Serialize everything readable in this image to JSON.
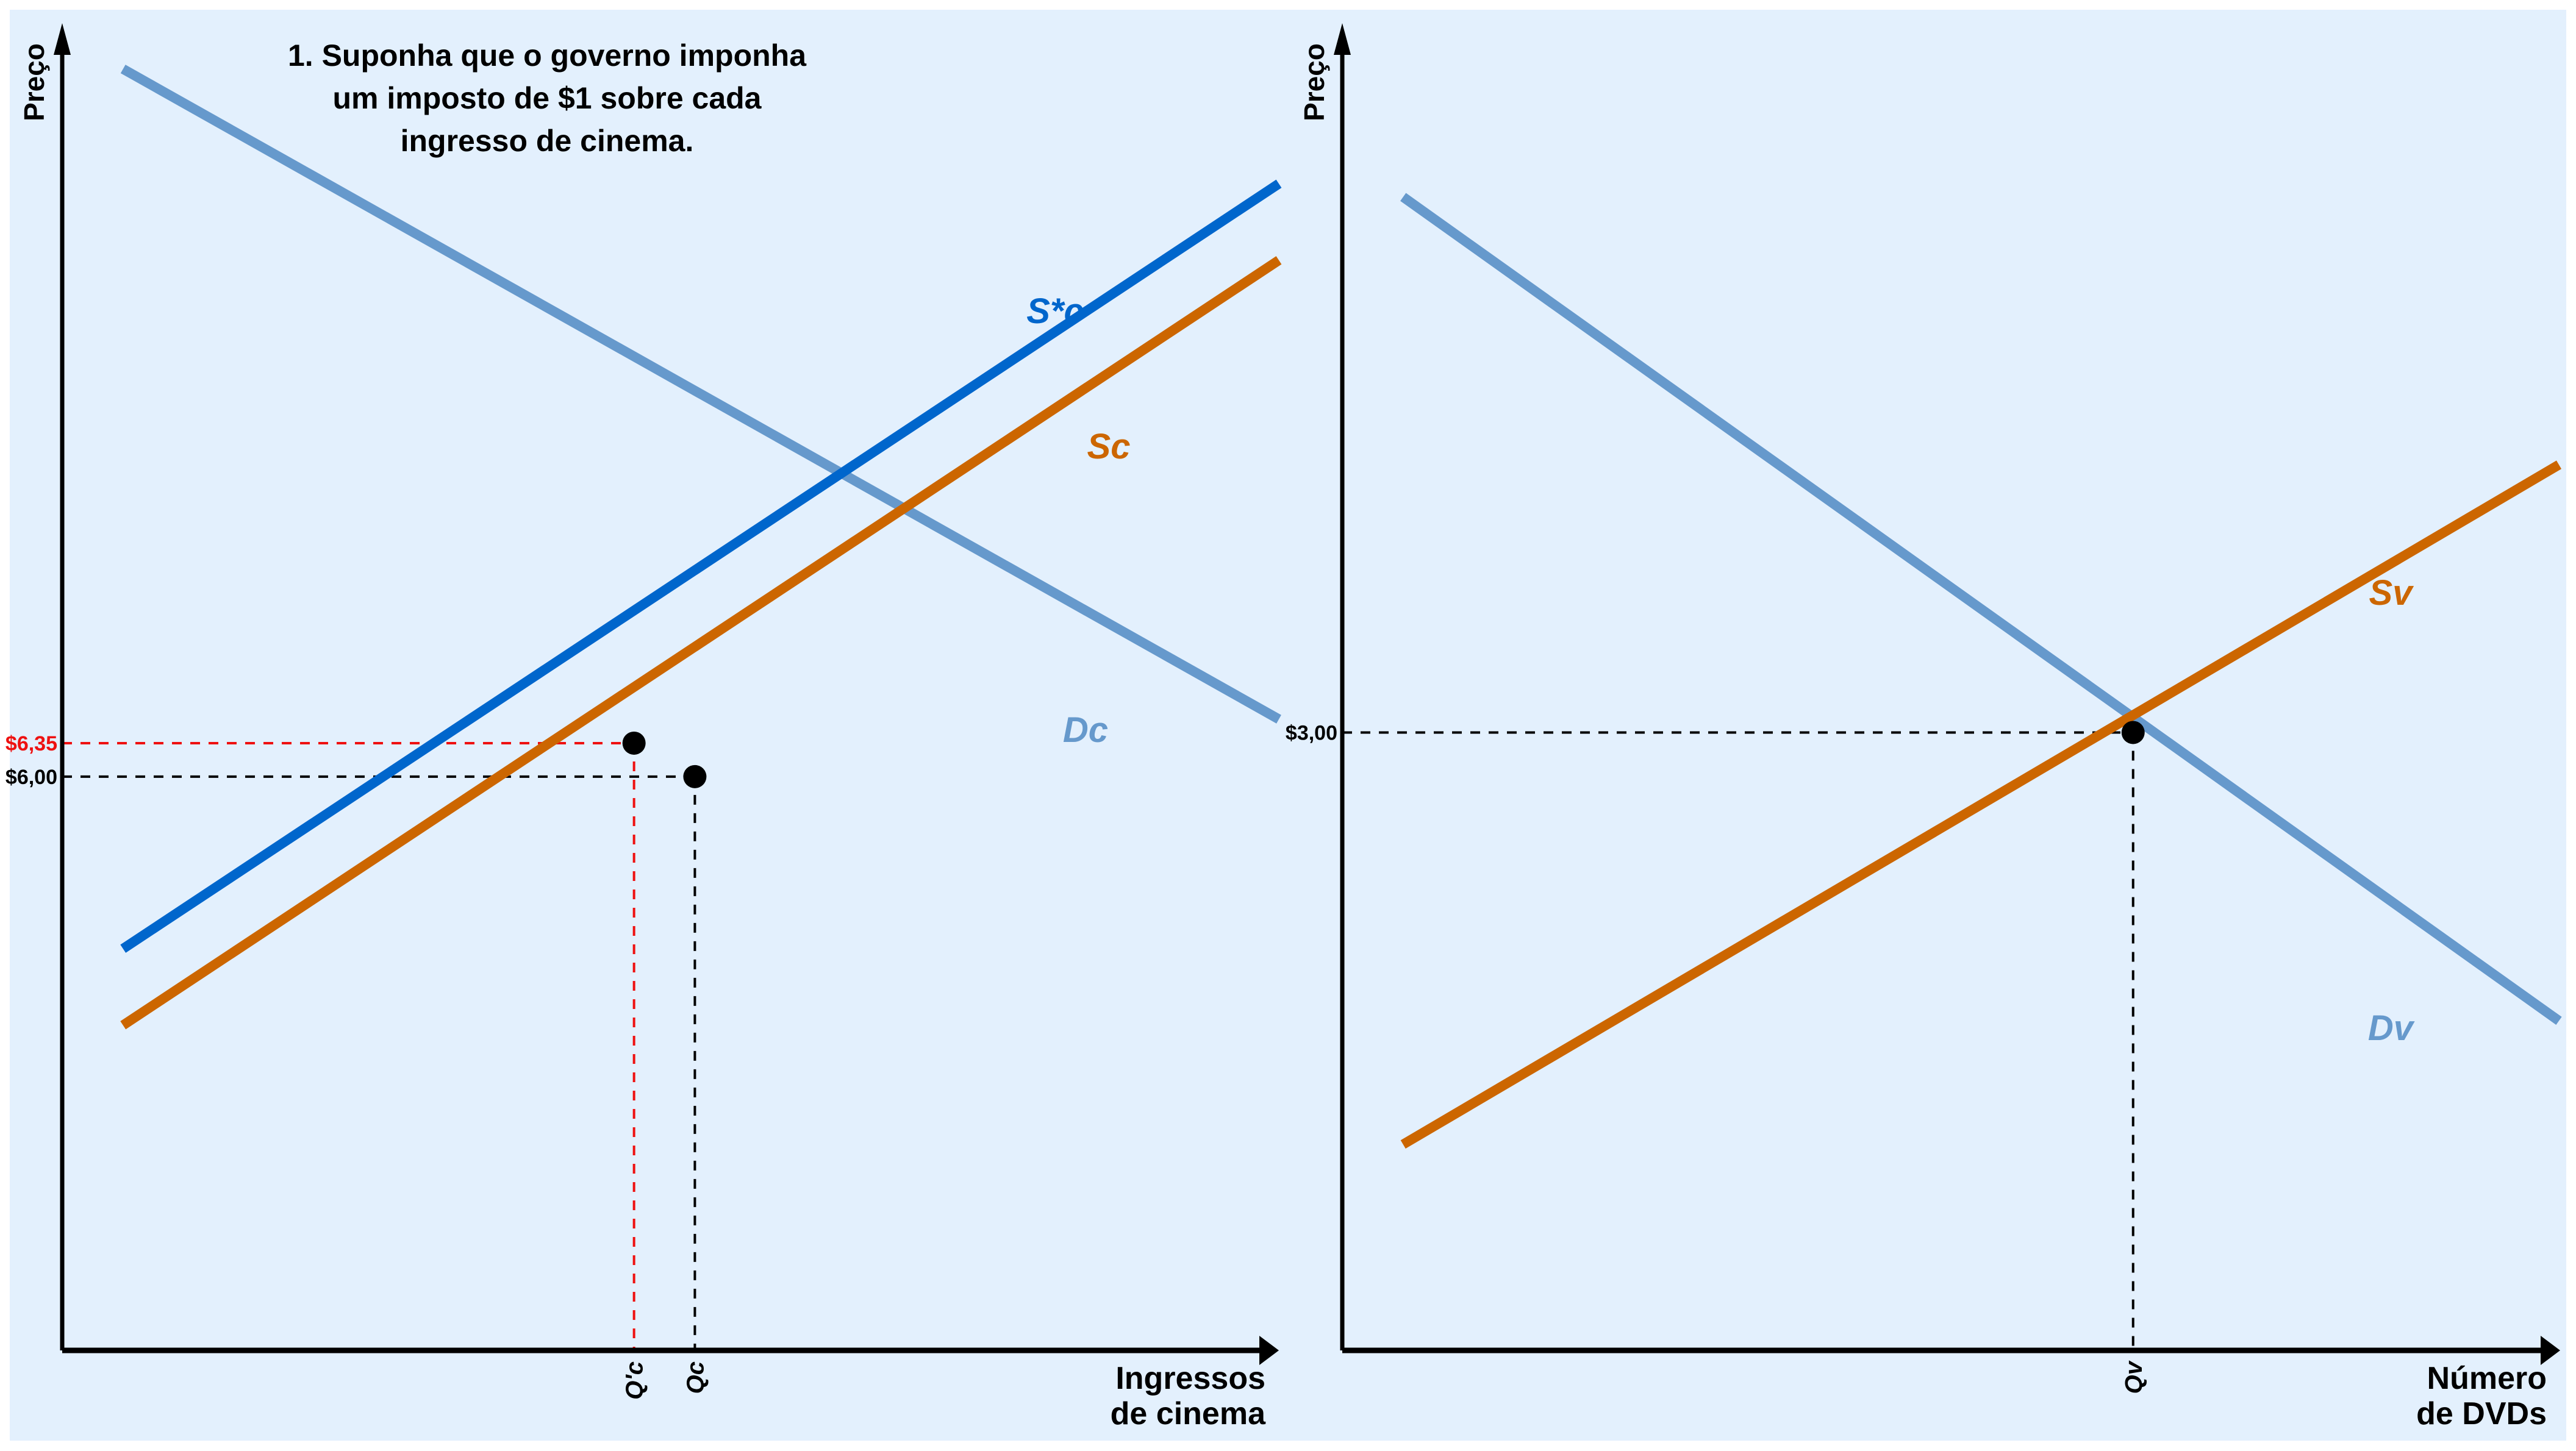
{
  "colors": {
    "background": "#e3f0fd",
    "demand": "#6699cc",
    "supply": "#cc6600",
    "supply_taxed": "#0066cc",
    "axis": "#000000",
    "highlight": "#ee1111"
  },
  "annotation": {
    "lines": [
      "1. Suponha que o governo imponha",
      "um imposto de $1 sobre cada",
      "ingresso de cinema."
    ]
  },
  "chart_data": [
    {
      "type": "line",
      "title": "",
      "ylabel": "Preço",
      "xlabel_lines": [
        "Ingressos",
        "de cinema"
      ],
      "grid": false,
      "y_ticks": [
        {
          "label": "$6,35",
          "value": 6.35,
          "highlight": true
        },
        {
          "label": "$6,00",
          "value": 6.0,
          "highlight": false
        }
      ],
      "x_ticks": [
        {
          "label": "Q'c",
          "value": 4.7,
          "highlight": true
        },
        {
          "label": "Qc",
          "value": 5.2,
          "highlight": false
        }
      ],
      "xlim": [
        0,
        10
      ],
      "ylim": [
        0,
        14
      ],
      "series": [
        {
          "name": "Dc",
          "color_key": "demand",
          "x": [
            0.5,
            10
          ],
          "y": [
            13.4,
            6.6
          ]
        },
        {
          "name": "S*c",
          "color_key": "supply_taxed",
          "x": [
            0.5,
            10
          ],
          "y": [
            4.2,
            12.2
          ]
        },
        {
          "name": "Sc",
          "color_key": "supply",
          "x": [
            0.5,
            10
          ],
          "y": [
            3.4,
            11.4
          ]
        }
      ],
      "points": [
        {
          "x": 4.7,
          "y": 6.35
        },
        {
          "x": 5.2,
          "y": 6.0
        }
      ]
    },
    {
      "type": "line",
      "title": "",
      "ylabel": "Preço",
      "xlabel_lines": [
        "Número",
        "de DVDs"
      ],
      "grid": false,
      "y_ticks": [
        {
          "label": "$3,00",
          "value": 3.0,
          "highlight": false
        }
      ],
      "x_ticks": [
        {
          "label": "Qv",
          "value": 6.5,
          "highlight": false
        }
      ],
      "xlim": [
        0,
        10
      ],
      "ylim": [
        0,
        6.5
      ],
      "series": [
        {
          "name": "Dv",
          "color_key": "demand",
          "x": [
            0.5,
            10
          ],
          "y": [
            5.6,
            1.6
          ]
        },
        {
          "name": "Sv",
          "color_key": "supply",
          "x": [
            0.5,
            10
          ],
          "y": [
            1.0,
            4.3
          ]
        }
      ],
      "points": [
        {
          "x": 6.5,
          "y": 3.0
        }
      ]
    }
  ]
}
